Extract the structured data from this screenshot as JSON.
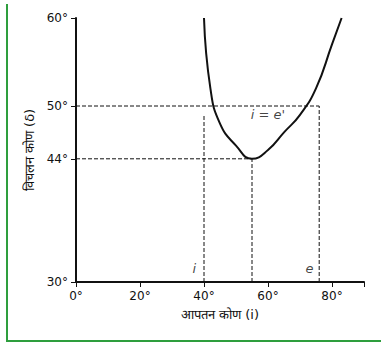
{
  "chart_data": {
    "type": "line",
    "x_label": "आपतन कोण (i)",
    "y_label": "विचलन कोण (δ)",
    "xlim": [
      0,
      90
    ],
    "xticks": [
      {
        "value": 0,
        "label": "0°"
      },
      {
        "value": 20,
        "label": "20°"
      },
      {
        "value": 40,
        "label": "40°"
      },
      {
        "value": 60,
        "label": "60°"
      },
      {
        "value": 80,
        "label": "80°"
      }
    ],
    "ylim": [
      30,
      60
    ],
    "yticks": [
      {
        "value": 30,
        "label": "30°"
      },
      {
        "value": 44,
        "label": "44°"
      },
      {
        "value": 50,
        "label": "50°"
      },
      {
        "value": 60,
        "label": "60°"
      }
    ],
    "grid": false,
    "color": "#111111",
    "curve": {
      "x": [
        40,
        42,
        45,
        50,
        55,
        60,
        65,
        70,
        75,
        80,
        83
      ],
      "y": [
        60,
        52,
        48,
        45.5,
        44,
        45,
        47,
        49,
        52,
        57,
        60
      ]
    },
    "guides": [
      {
        "x": [
          0,
          76
        ],
        "y": [
          50,
          50
        ],
        "line_style": "dashed"
      },
      {
        "x": [
          0,
          55
        ],
        "y": [
          44,
          44
        ],
        "line_style": "dashed"
      },
      {
        "x": [
          40,
          40
        ],
        "y": [
          30,
          49
        ],
        "line_style": "dashed"
      },
      {
        "x": [
          55,
          55
        ],
        "y": [
          30,
          44
        ],
        "line_style": "dashed"
      },
      {
        "x": [
          76,
          76
        ],
        "y": [
          30,
          50
        ],
        "line_style": "dashed"
      }
    ],
    "annotations": [
      {
        "text": "i = e'",
        "x": 60,
        "y": 49
      },
      {
        "text": "i",
        "x": 37,
        "y": 31.5
      },
      {
        "text": "e",
        "x": 73,
        "y": 31.5
      }
    ]
  }
}
